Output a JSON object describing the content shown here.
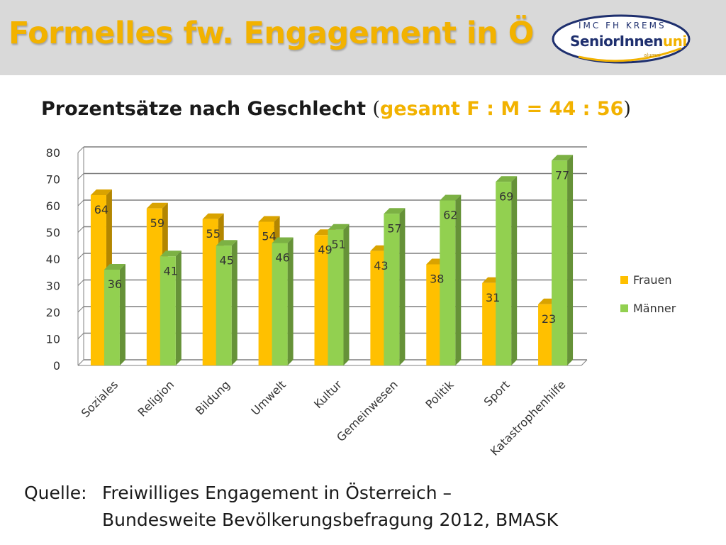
{
  "header": {
    "title": "Formelles fw. Engagement in Ö"
  },
  "logo": {
    "top_text": "IMC FH KREMS",
    "main_text": "SeniorInnen",
    "main_accent": "uni",
    "small_text": "alumni"
  },
  "subtitle": {
    "main": "Prozentsätze nach Geschlecht ",
    "open_paren": "(",
    "accent": "gesamt F : M = 44 : 56",
    "close_paren": ")"
  },
  "colors": {
    "accent": "#f2b200",
    "frauen": "#ffc000",
    "maenner": "#92d050",
    "header_bg": "#d9d9d9"
  },
  "chart_data": {
    "type": "bar",
    "categories": [
      "Soziales",
      "Religion",
      "Bildung",
      "Umwelt",
      "Kultur",
      "Gemeinwesen",
      "Politik",
      "Sport",
      "Katastrophenhilfe"
    ],
    "series": [
      {
        "name": "Frauen",
        "values": [
          64,
          59,
          55,
          54,
          49,
          43,
          38,
          31,
          23
        ]
      },
      {
        "name": "Männer",
        "values": [
          36,
          41,
          45,
          46,
          51,
          57,
          62,
          69,
          77
        ]
      }
    ],
    "ylim": [
      0,
      80
    ],
    "yticks": [
      "0",
      "10",
      "20",
      "30",
      "40",
      "50",
      "60",
      "70",
      "80"
    ],
    "grid": true,
    "legend_position": "right",
    "data_labels": true
  },
  "source": {
    "label": "Quelle:",
    "line1": "Freiwilliges Engagement in Österreich –",
    "line2": "Bundesweite Bevölkerungsbefragung 2012, BMASK"
  }
}
